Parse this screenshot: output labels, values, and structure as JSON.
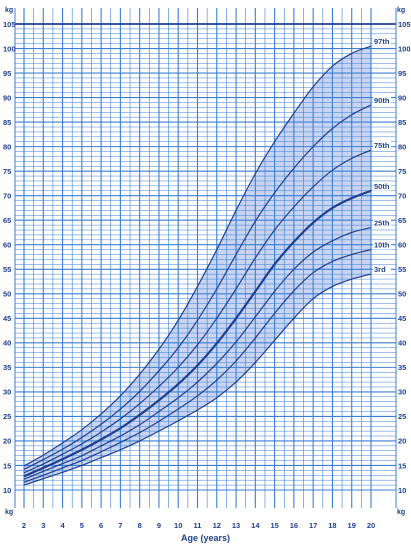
{
  "chart_data": {
    "type": "line",
    "title": "",
    "xlabel": "Age (years)",
    "ylabel": "kg",
    "y_unit_label": "kg",
    "xlim": [
      2,
      20
    ],
    "ylim": [
      10,
      105
    ],
    "x_ticks": [
      2,
      3,
      4,
      5,
      6,
      7,
      8,
      9,
      10,
      11,
      12,
      13,
      14,
      15,
      16,
      17,
      18,
      19,
      20
    ],
    "y_ticks": [
      10,
      15,
      20,
      25,
      30,
      35,
      40,
      45,
      50,
      55,
      60,
      65,
      70,
      75,
      80,
      85,
      90,
      95,
      100,
      105
    ],
    "grid": true,
    "shaded_band": [
      "3rd",
      "97th"
    ],
    "x": [
      2,
      3,
      4,
      5,
      6,
      7,
      8,
      9,
      10,
      11,
      12,
      13,
      14,
      15,
      16,
      17,
      18,
      19,
      20
    ],
    "series": [
      {
        "name": "3rd",
        "label": "3rd",
        "values": [
          11,
          12.3,
          13.6,
          15,
          16.6,
          18.2,
          20,
          22,
          24.1,
          26.3,
          28.8,
          32,
          36,
          40.5,
          45,
          49,
          51.5,
          53,
          54
        ]
      },
      {
        "name": "10th",
        "label": "10th",
        "values": [
          11.6,
          13,
          14.5,
          16,
          17.8,
          19.7,
          21.7,
          24,
          26.5,
          29.2,
          32.4,
          36.3,
          41,
          46,
          50.6,
          54.3,
          56.6,
          58,
          59
        ]
      },
      {
        "name": "25th",
        "label": "25th",
        "values": [
          12.2,
          13.8,
          15.4,
          17,
          19,
          21,
          23.3,
          26,
          28.8,
          32,
          35.8,
          40.2,
          45.3,
          50.5,
          55,
          58.5,
          60.8,
          62.5,
          63.5
        ]
      },
      {
        "name": "50th",
        "label": "50th",
        "values": [
          12.8,
          14.5,
          16.3,
          18.2,
          20.3,
          22.6,
          25.3,
          28.3,
          31.6,
          35.4,
          39.9,
          45,
          50.5,
          56,
          60.6,
          64.5,
          67.5,
          69.5,
          71
        ]
      },
      {
        "name": "75th",
        "label": "75th",
        "values": [
          13.5,
          15.3,
          17.3,
          19.4,
          21.8,
          24.5,
          27.6,
          31.1,
          35,
          39.6,
          45,
          51,
          57.3,
          63,
          67.7,
          71.8,
          75.2,
          77.6,
          79.3
        ]
      },
      {
        "name": "90th",
        "label": "90th",
        "values": [
          14.2,
          16.2,
          18.3,
          20.7,
          23.4,
          26.5,
          30.1,
          34.3,
          39,
          44.6,
          51,
          58,
          64.8,
          70.6,
          75.6,
          80,
          83.7,
          86.5,
          88.5
        ]
      },
      {
        "name": "97th",
        "label": "97th",
        "values": [
          14.9,
          17.1,
          19.6,
          22.3,
          25.5,
          29.2,
          33.6,
          38.7,
          44.6,
          51.5,
          59,
          67,
          74.5,
          81,
          86.8,
          92.2,
          96.4,
          99,
          100.5
        ]
      }
    ],
    "colors": {
      "line": "#1f3f8f",
      "grid": "#3b7fd4",
      "band": "#c8d4f0",
      "label_bg": "#ffffff"
    }
  }
}
